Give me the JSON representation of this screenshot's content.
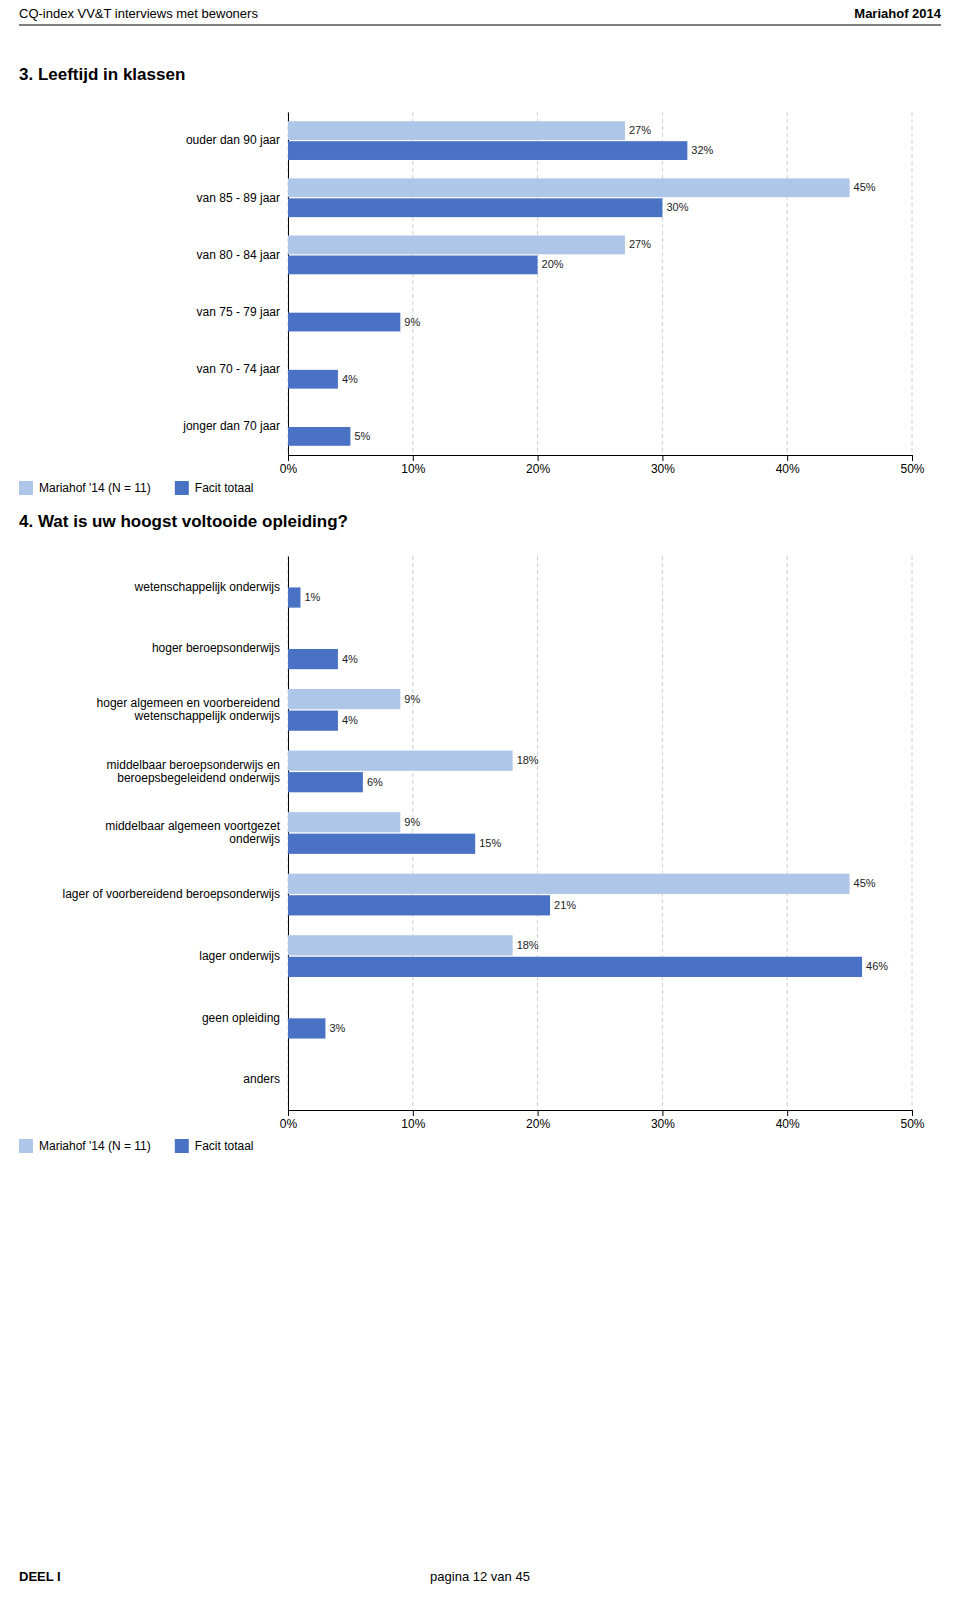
{
  "page": {
    "header_left": "CQ-index VV&T interviews met bewoners",
    "header_right": "Mariahof 2014",
    "footer_left": "DEEL I",
    "footer_center": "pagina 12 van 45"
  },
  "chart_data": [
    {
      "type": "bar",
      "orientation": "horizontal",
      "title": "3.  Leeftijd in klassen",
      "categories": [
        "ouder dan 90 jaar",
        "van 85 - 89 jaar",
        "van 80 - 84 jaar",
        "van 75 - 79 jaar",
        "van 70 - 74 jaar",
        "jonger dan 70 jaar"
      ],
      "series": [
        {
          "name": "Mariahof '14 (N = 11)",
          "color": "#aec6e8",
          "values": [
            27,
            45,
            27,
            0,
            0,
            0
          ],
          "value_labels": [
            "27%",
            "45%",
            "27%",
            null,
            null,
            null
          ]
        },
        {
          "name": "Facit totaal",
          "color": "#4a72c4",
          "values": [
            32,
            30,
            20,
            9,
            4,
            5
          ],
          "value_labels": [
            "32%",
            "30%",
            "20%",
            "9%",
            "4%",
            "5%"
          ]
        }
      ],
      "xlim": [
        0,
        50
      ],
      "xticks": [
        {
          "value": 0,
          "label": "0%"
        },
        {
          "value": 10,
          "label": "10%"
        },
        {
          "value": 20,
          "label": "20%"
        },
        {
          "value": 30,
          "label": "30%"
        },
        {
          "value": 40,
          "label": "40%"
        },
        {
          "value": 50,
          "label": "50%"
        }
      ],
      "grid": true,
      "data_labels": true,
      "legend": "bottom"
    },
    {
      "type": "bar",
      "orientation": "horizontal",
      "title": "4.  Wat is uw hoogst voltooide opleiding?",
      "categories": [
        "wetenschappelijk onderwijs",
        "hoger beroepsonderwijs",
        "hoger algemeen en voorbereidend\nwetenschappelijk onderwijs",
        "middelbaar beroepsonderwijs en\nberoepsbegeleidend onderwijs",
        "middelbaar algemeen voortgezet\nonderwijs",
        "lager of voorbereidend beroepsonderwijs",
        "lager onderwijs",
        "geen opleiding",
        "anders"
      ],
      "series": [
        {
          "name": "Mariahof '14 (N = 11)",
          "color": "#aec6e8",
          "values": [
            0,
            0,
            9,
            18,
            9,
            45,
            18,
            0,
            0
          ],
          "value_labels": [
            null,
            null,
            "9%",
            "18%",
            "9%",
            "45%",
            "18%",
            null,
            null
          ]
        },
        {
          "name": "Facit totaal",
          "color": "#4a72c4",
          "values": [
            1,
            4,
            4,
            6,
            15,
            21,
            46,
            3,
            0
          ],
          "value_labels": [
            "1%",
            "4%",
            "4%",
            "6%",
            "15%",
            "21%",
            "46%",
            "3%",
            null
          ]
        }
      ],
      "xlim": [
        0,
        50
      ],
      "xticks": [
        {
          "value": 0,
          "label": "0%"
        },
        {
          "value": 10,
          "label": "10%"
        },
        {
          "value": 20,
          "label": "20%"
        },
        {
          "value": 30,
          "label": "30%"
        },
        {
          "value": 40,
          "label": "40%"
        },
        {
          "value": 50,
          "label": "50%"
        }
      ],
      "grid": true,
      "data_labels": true,
      "legend": "bottom"
    }
  ]
}
